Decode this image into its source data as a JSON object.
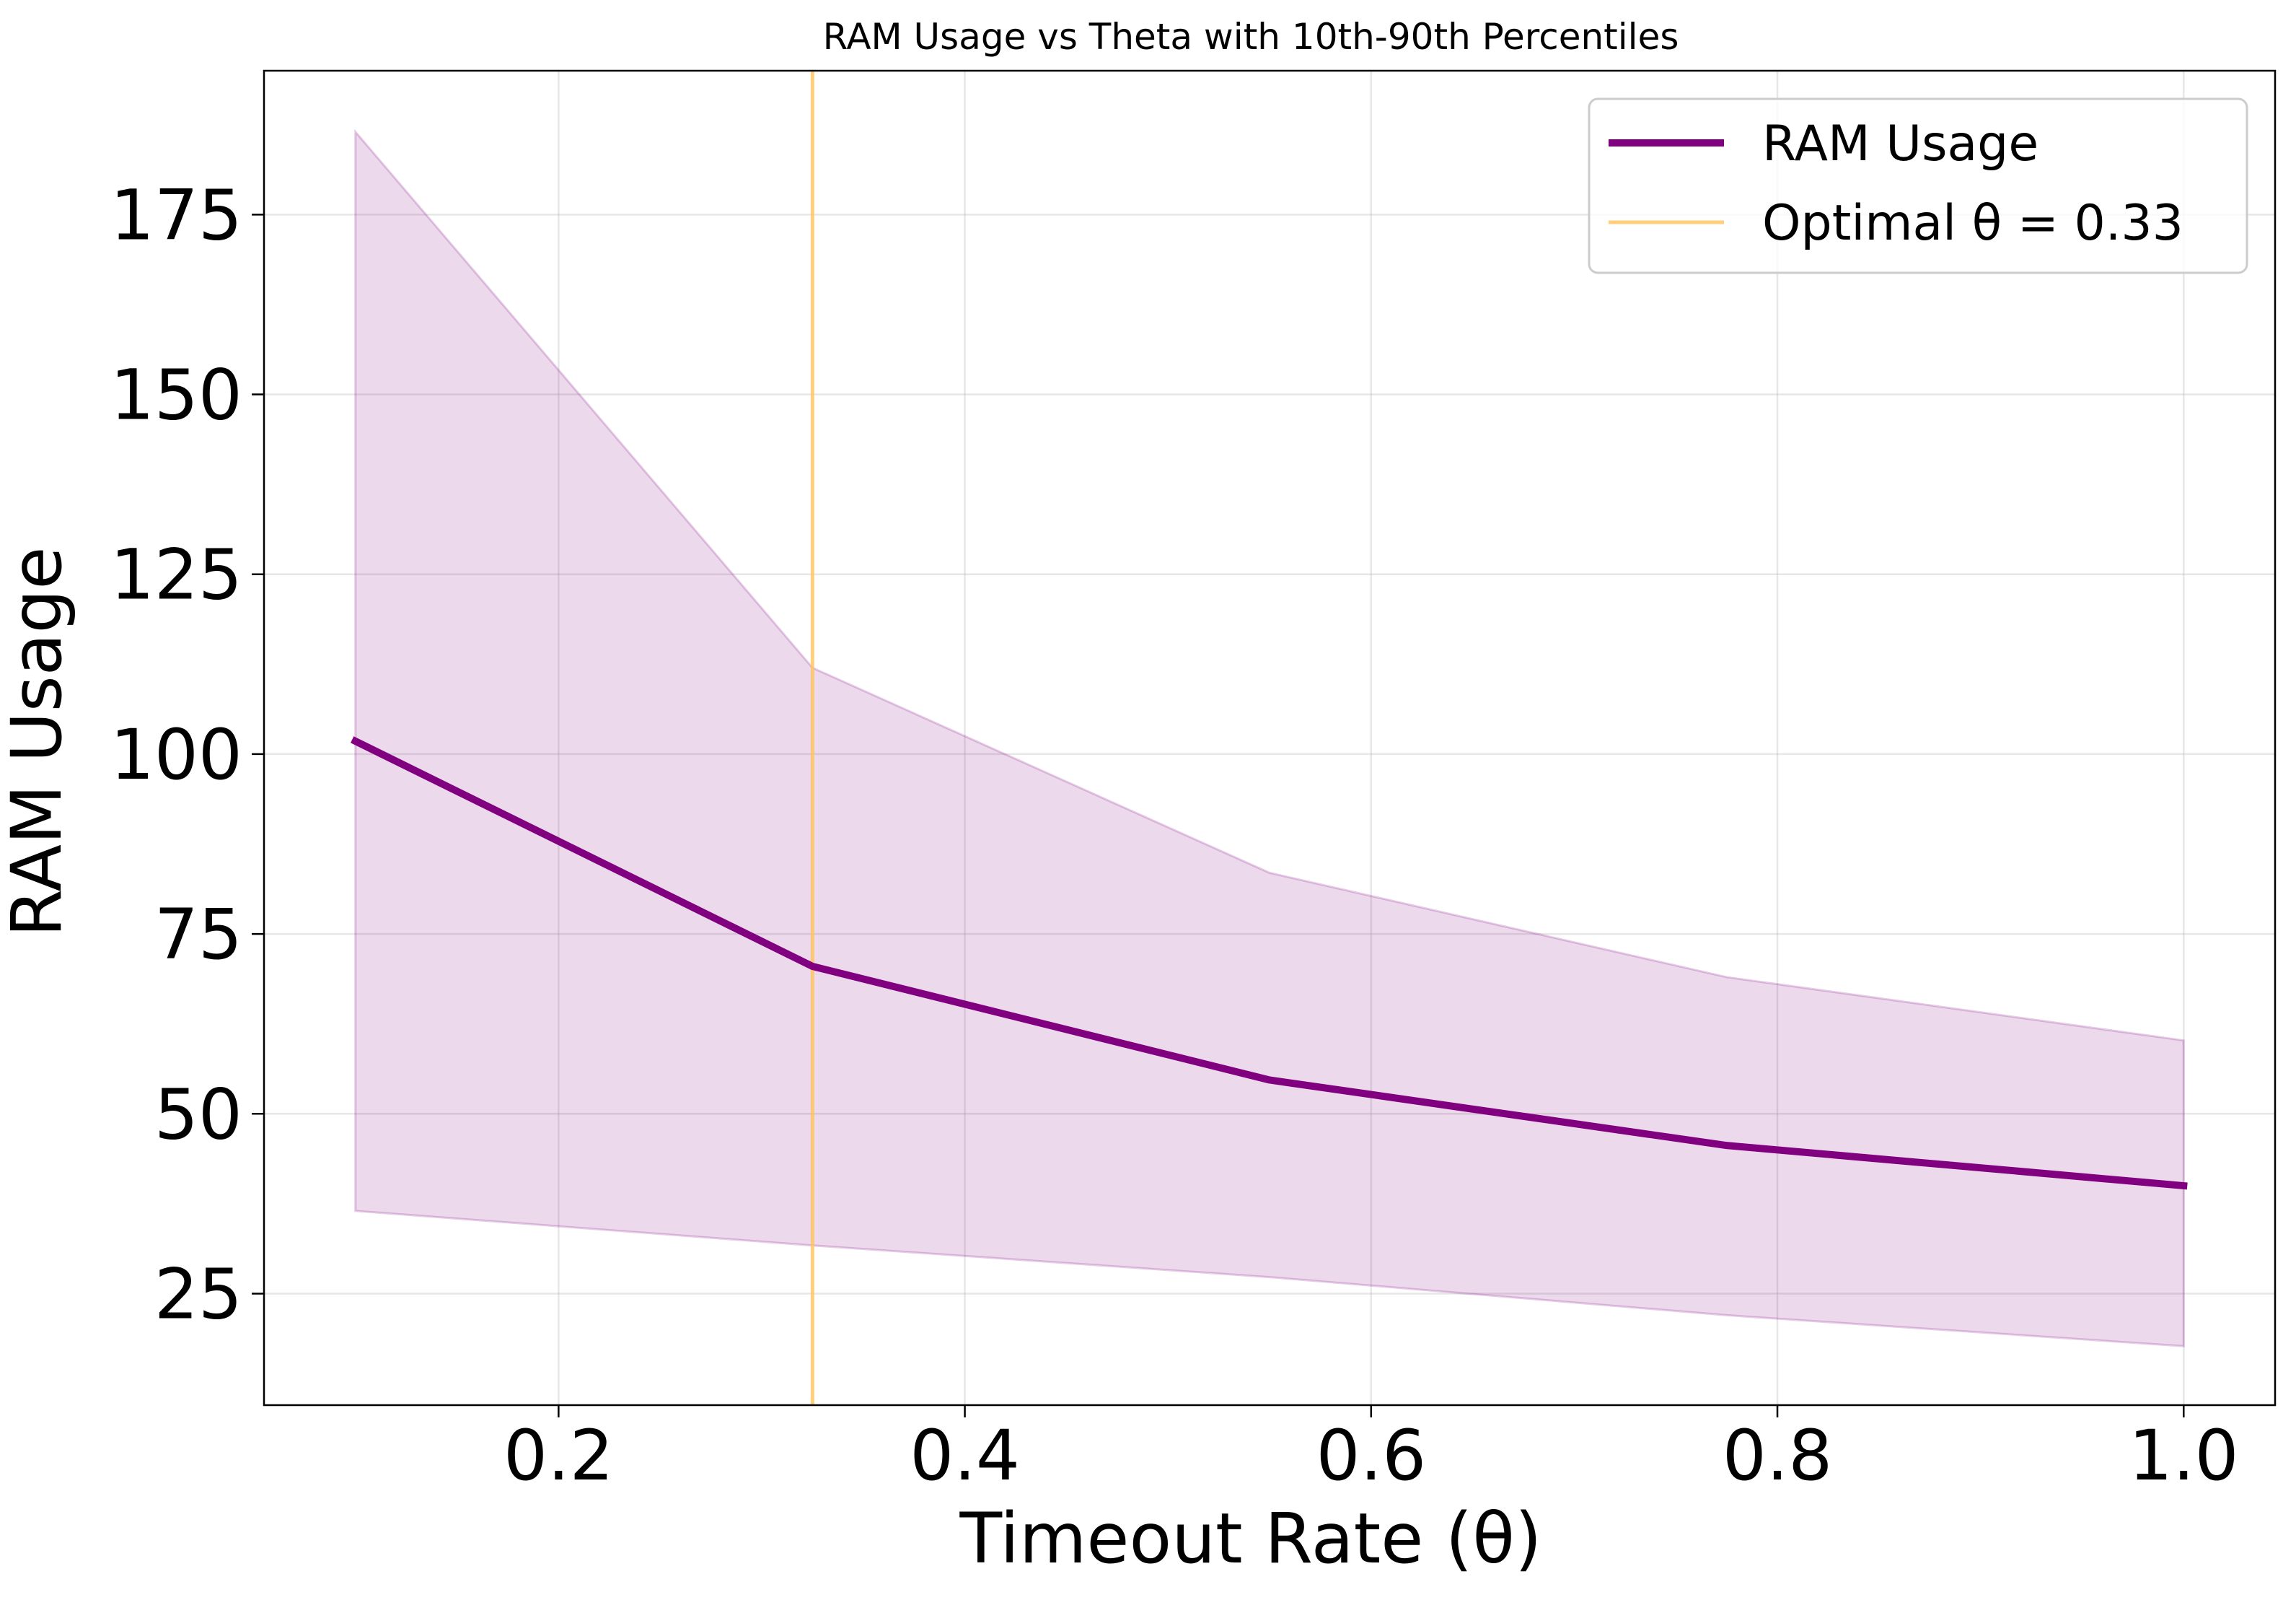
{
  "chart_data": {
    "type": "line",
    "title": "RAM Usage vs Theta with 10th-90th Percentiles",
    "xlabel": "Timeout Rate (θ)",
    "ylabel": "RAM Usage",
    "xlim": [
      0.055,
      1.045
    ],
    "ylim": [
      9.5,
      195
    ],
    "xticks": [
      0.2,
      0.4,
      0.6,
      0.8,
      1.0
    ],
    "xtick_labels": [
      "0.2",
      "0.4",
      "0.6",
      "0.8",
      "1.0"
    ],
    "yticks": [
      25,
      50,
      75,
      100,
      125,
      150,
      175
    ],
    "ytick_labels": [
      "25",
      "50",
      "75",
      "100",
      "125",
      "150",
      "175"
    ],
    "grid": true,
    "legend_position": "top-right",
    "x": [
      0.1,
      0.325,
      0.55,
      0.775,
      1.0
    ],
    "series": [
      {
        "name": "RAM Usage",
        "type": "line",
        "color": "#800080",
        "values": [
          101.8,
          70.5,
          54.7,
          45.6,
          40.0
        ]
      }
    ],
    "band": {
      "lower": [
        36.5,
        31.7,
        27.3,
        22.0,
        17.7
      ],
      "upper": [
        186.5,
        112.0,
        83.5,
        69.0,
        60.2
      ],
      "color": "#800080"
    },
    "vline": {
      "name": "Optimal θ = 0.33",
      "x": 0.325,
      "color": "#ffc35a"
    }
  }
}
